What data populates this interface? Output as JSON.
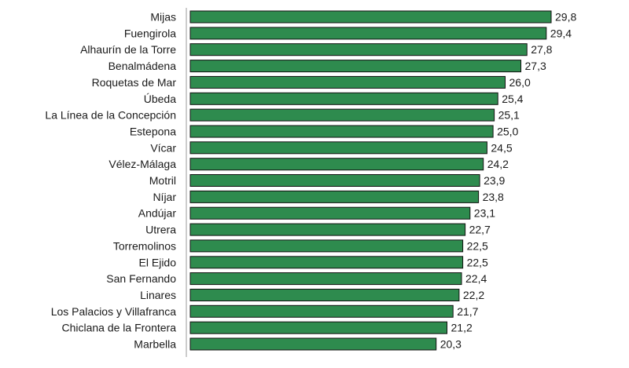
{
  "chart_data": {
    "type": "bar",
    "orientation": "horizontal",
    "categories": [
      "Mijas",
      "Fuengirola",
      "Alhaurín de la Torre",
      "Benalmádena",
      "Roquetas de Mar",
      "Úbeda",
      "La Línea de la Concepción",
      "Estepona",
      "Vícar",
      "Vélez-Málaga",
      "Motril",
      "Níjar",
      "Andújar",
      "Utrera",
      "Torremolinos",
      "El Ejido",
      "San Fernando",
      "Linares",
      "Los Palacios y Villafranca",
      "Chiclana de la Frontera",
      "Marbella"
    ],
    "values": [
      29.8,
      29.4,
      27.8,
      27.3,
      26.0,
      25.4,
      25.1,
      25.0,
      24.5,
      24.2,
      23.9,
      23.8,
      23.1,
      22.7,
      22.5,
      22.5,
      22.4,
      22.2,
      21.7,
      21.2,
      20.3
    ],
    "value_labels": [
      "29,8",
      "29,4",
      "27,8",
      "27,3",
      "26,0",
      "25,4",
      "25,1",
      "25,0",
      "24,5",
      "24,2",
      "23,9",
      "23,8",
      "23,1",
      "22,7",
      "22,5",
      "22,5",
      "22,4",
      "22,2",
      "21,7",
      "21,2",
      "20,3"
    ],
    "xlim": [
      0,
      29.8
    ],
    "title": "",
    "xlabel": "",
    "ylabel": "",
    "grid": false,
    "legend": "none",
    "bar_color": "#2e8b4e"
  }
}
